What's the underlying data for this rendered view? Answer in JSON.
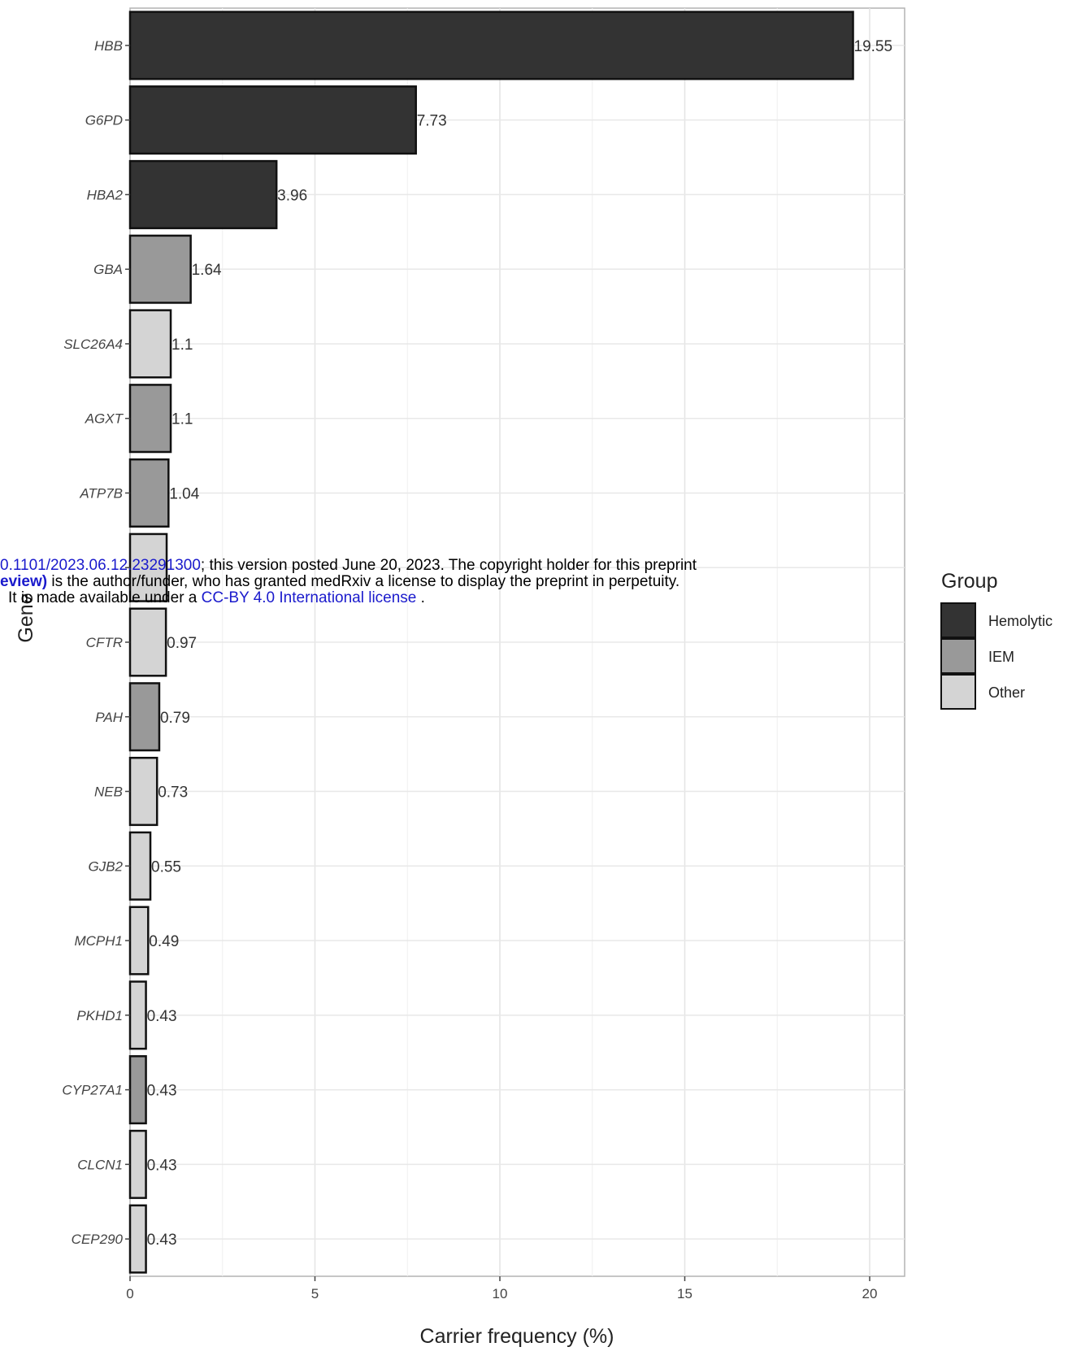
{
  "chart_data": {
    "type": "bar",
    "orientation": "horizontal",
    "ylabel": "Gene",
    "xlabel": "Carrier frequency (%)",
    "xlim": [
      0,
      20.9
    ],
    "xticks": [
      "0",
      "5",
      "10",
      "15",
      "20"
    ],
    "grid": true,
    "legend": {
      "title": "Group",
      "placement": "right",
      "entries": [
        {
          "label": "Hemolytic",
          "color": "#333333"
        },
        {
          "label": "IEM",
          "color": "#999999"
        },
        {
          "label": "Other",
          "color": "#d4d4d4"
        }
      ]
    },
    "bars": [
      {
        "gene": "HBB",
        "value": 19.55,
        "label": "19.55",
        "group": "Hemolytic"
      },
      {
        "gene": "G6PD",
        "value": 7.73,
        "label": "7.73",
        "group": "Hemolytic"
      },
      {
        "gene": "HBA2",
        "value": 3.96,
        "label": "3.96",
        "group": "Hemolytic"
      },
      {
        "gene": "GBA",
        "value": 1.64,
        "label": "1.64",
        "group": "IEM"
      },
      {
        "gene": "SLC26A4",
        "value": 1.1,
        "label": "1.1",
        "group": "Other"
      },
      {
        "gene": "AGXT",
        "value": 1.1,
        "label": "1.1",
        "group": "IEM"
      },
      {
        "gene": "ATP7B",
        "value": 1.04,
        "label": "1.04",
        "group": "IEM"
      },
      {
        "gene": "",
        "value": 0.99,
        "label": "",
        "group": "Other"
      },
      {
        "gene": "CFTR",
        "value": 0.97,
        "label": "0.97",
        "group": "Other"
      },
      {
        "gene": "PAH",
        "value": 0.79,
        "label": "0.79",
        "group": "IEM"
      },
      {
        "gene": "NEB",
        "value": 0.73,
        "label": "0.73",
        "group": "Other"
      },
      {
        "gene": "GJB2",
        "value": 0.55,
        "label": "0.55",
        "group": "Other"
      },
      {
        "gene": "MCPH1",
        "value": 0.49,
        "label": "0.49",
        "group": "Other"
      },
      {
        "gene": "PKHD1",
        "value": 0.43,
        "label": "0.43",
        "group": "Other"
      },
      {
        "gene": "CYP27A1",
        "value": 0.43,
        "label": "0.43",
        "group": "IEM"
      },
      {
        "gene": "CLCN1",
        "value": 0.43,
        "label": "0.43",
        "group": "Other"
      },
      {
        "gene": "CEP290",
        "value": 0.43,
        "label": "0.43",
        "group": "Other"
      }
    ]
  },
  "watermark": {
    "line1_doi": "0.1101/2023.06.12.23291300",
    "line1_rest": "; this version posted June 20, 2023. The copyright holder for this preprint",
    "line2_bold": "eview)",
    "line2_rest": " is the author/funder, who has granted medRxiv a license to display the preprint in perpetuity.",
    "line3_pre": "It is made available under a ",
    "line3_link": "CC-BY 4.0 International license",
    "line3_post": " ."
  }
}
